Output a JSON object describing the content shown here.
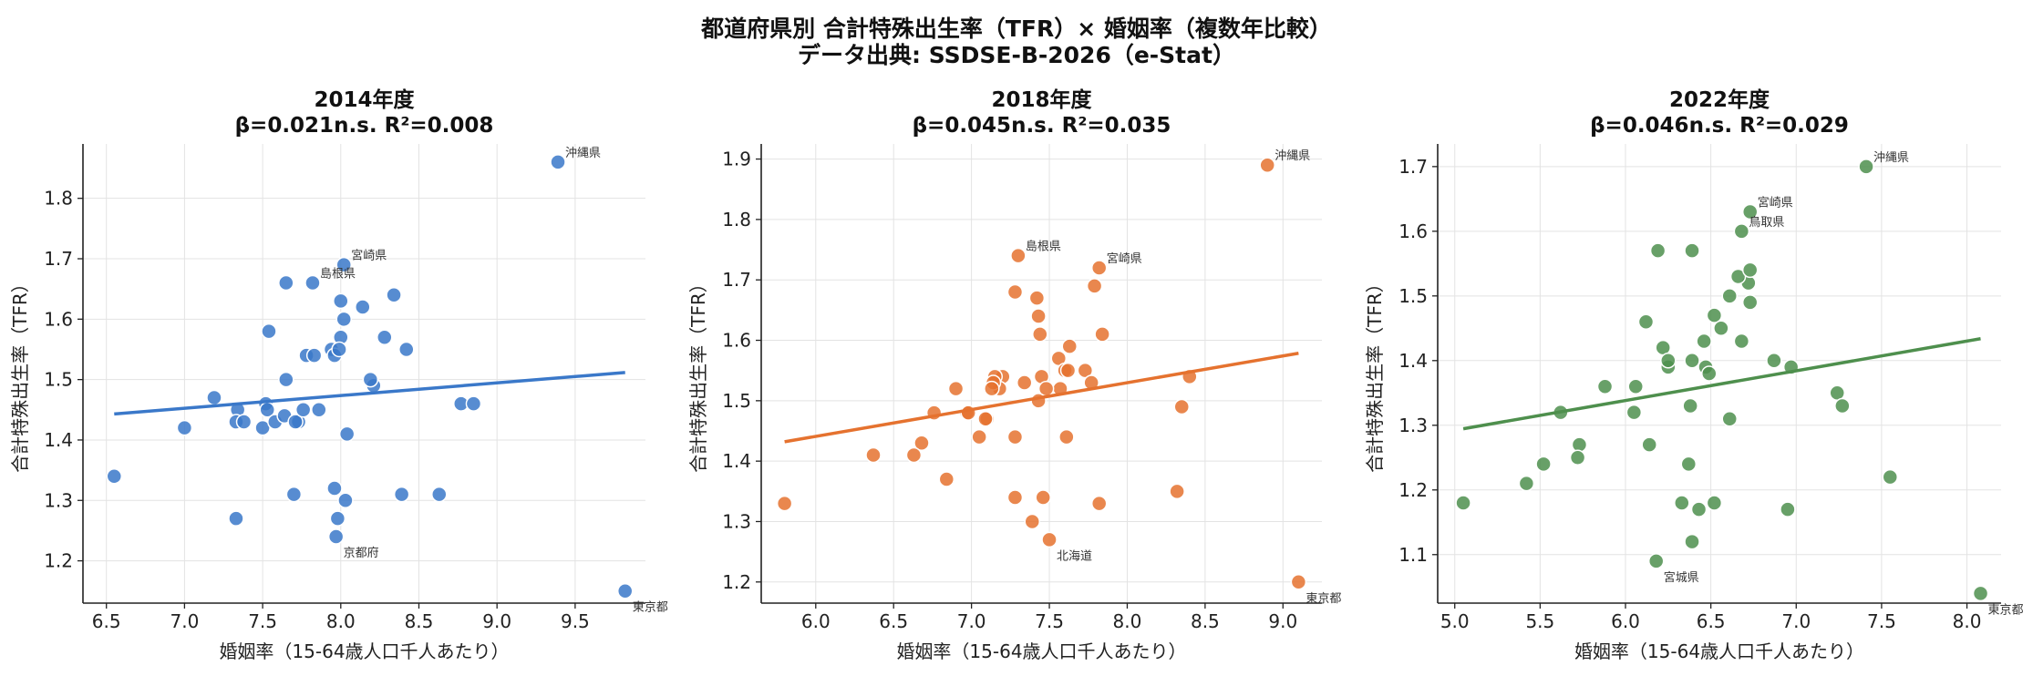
{
  "figure": {
    "title": "都道府県別 合計特殊出生率（TFR）× 婚姻率（複数年比較）",
    "source": "データ出典: SSDSE-B-2026（e-Stat）"
  },
  "chart_data": [
    {
      "type": "scatter",
      "title": "2014年度",
      "subtitle": "β=0.021n.s.  R²=0.008",
      "xlabel": "婚姻率（15-64歳人口千人あたり）",
      "ylabel": "合計特殊出生率（TFR）",
      "xlim": [
        6.35,
        9.95
      ],
      "ylim": [
        1.13,
        1.89
      ],
      "xticks": [
        6.5,
        7.0,
        7.5,
        8.0,
        8.5,
        9.0,
        9.5
      ],
      "xtick_labels": [
        "6.5",
        "7.0",
        "7.5",
        "8.0",
        "8.5",
        "9.0",
        "9.5"
      ],
      "yticks": [
        1.2,
        1.3,
        1.4,
        1.5,
        1.6,
        1.7,
        1.8
      ],
      "ytick_labels": [
        "1.2",
        "1.3",
        "1.4",
        "1.5",
        "1.6",
        "1.7",
        "1.8"
      ],
      "grid": true,
      "color": "#3a78c9",
      "x": [
        9.39,
        9.82,
        8.02,
        7.82,
        7.97,
        8.0,
        8.02,
        7.65,
        8.14,
        8.34,
        8.28,
        8.0,
        7.94,
        7.96,
        7.54,
        7.78,
        7.83,
        7.73,
        8.42,
        8.21,
        8.19,
        7.65,
        7.19,
        7.34,
        7.33,
        7.5,
        7.52,
        7.53,
        7.58,
        7.64,
        7.71,
        7.76,
        7.86,
        7.38,
        7.0,
        6.55,
        7.7,
        7.96,
        8.04,
        8.39,
        8.63,
        8.77,
        8.85,
        7.98,
        7.99,
        8.03,
        7.33
      ],
      "y": [
        1.86,
        1.15,
        1.69,
        1.66,
        1.24,
        1.63,
        1.6,
        1.66,
        1.62,
        1.64,
        1.57,
        1.57,
        1.55,
        1.54,
        1.58,
        1.54,
        1.54,
        1.43,
        1.55,
        1.49,
        1.5,
        1.5,
        1.47,
        1.45,
        1.43,
        1.42,
        1.46,
        1.45,
        1.43,
        1.44,
        1.43,
        1.45,
        1.45,
        1.43,
        1.42,
        1.34,
        1.31,
        1.32,
        1.41,
        1.31,
        1.31,
        1.46,
        1.46,
        1.27,
        1.55,
        1.3,
        1.27
      ],
      "point_labels": [
        {
          "index": 0,
          "text": "沖縄県"
        },
        {
          "index": 1,
          "text": "東京都"
        },
        {
          "index": 2,
          "text": "宮崎県"
        },
        {
          "index": 3,
          "text": "島根県"
        },
        {
          "index": 4,
          "text": "京都府"
        }
      ],
      "regression": {
        "x": [
          6.55,
          9.82
        ],
        "y": [
          1.4431,
          1.5117
        ]
      }
    },
    {
      "type": "scatter",
      "title": "2018年度",
      "subtitle": "β=0.045n.s.  R²=0.035",
      "xlabel": "婚姻率（15-64歳人口千人あたり）",
      "ylabel": "合計特殊出生率（TFR）",
      "xlim": [
        5.65,
        9.25
      ],
      "ylim": [
        1.165,
        1.925
      ],
      "xticks": [
        6.0,
        6.5,
        7.0,
        7.5,
        8.0,
        8.5,
        9.0
      ],
      "xtick_labels": [
        "6.0",
        "6.5",
        "7.0",
        "7.5",
        "8.0",
        "8.5",
        "9.0"
      ],
      "yticks": [
        1.2,
        1.3,
        1.4,
        1.5,
        1.6,
        1.7,
        1.8,
        1.9
      ],
      "ytick_labels": [
        "1.2",
        "1.3",
        "1.4",
        "1.5",
        "1.6",
        "1.7",
        "1.8",
        "1.9"
      ],
      "grid": true,
      "color": "#e5722f",
      "x": [
        8.9,
        9.1,
        7.3,
        7.82,
        7.5,
        7.28,
        7.42,
        7.43,
        7.44,
        7.56,
        7.63,
        7.84,
        7.6,
        7.62,
        7.57,
        7.45,
        7.48,
        7.34,
        7.43,
        7.73,
        7.77,
        7.79,
        8.4,
        8.35,
        7.2,
        7.18,
        7.15,
        7.14,
        7.13,
        7.1,
        6.9,
        6.97,
        6.98,
        7.09,
        7.05,
        7.28,
        6.76,
        6.68,
        6.63,
        6.37,
        6.84,
        5.8,
        7.28,
        7.46,
        7.39,
        7.82,
        8.32,
        7.61
      ],
      "y": [
        1.89,
        1.2,
        1.74,
        1.72,
        1.27,
        1.68,
        1.67,
        1.64,
        1.61,
        1.57,
        1.59,
        1.61,
        1.55,
        1.55,
        1.52,
        1.54,
        1.52,
        1.53,
        1.5,
        1.55,
        1.53,
        1.69,
        1.54,
        1.49,
        1.54,
        1.52,
        1.54,
        1.53,
        1.52,
        1.47,
        1.52,
        1.48,
        1.48,
        1.47,
        1.44,
        1.44,
        1.48,
        1.43,
        1.41,
        1.41,
        1.37,
        1.33,
        1.34,
        1.34,
        1.3,
        1.33,
        1.35,
        1.44
      ],
      "point_labels": [
        {
          "index": 0,
          "text": "沖縄県"
        },
        {
          "index": 1,
          "text": "東京都"
        },
        {
          "index": 2,
          "text": "島根県"
        },
        {
          "index": 3,
          "text": "宮崎県"
        },
        {
          "index": 4,
          "text": "北海道"
        }
      ],
      "regression": {
        "x": [
          5.8,
          9.1
        ],
        "y": [
          1.4321,
          1.5786
        ]
      }
    },
    {
      "type": "scatter",
      "title": "2022年度",
      "subtitle": "β=0.046n.s.  R²=0.029",
      "xlabel": "婚姻率（15-64歳人口千人あたり）",
      "ylabel": "合計特殊出生率（TFR）",
      "xlim": [
        4.9,
        8.2
      ],
      "ylim": [
        1.025,
        1.735
      ],
      "xticks": [
        5.0,
        5.5,
        6.0,
        6.5,
        7.0,
        7.5,
        8.0
      ],
      "xtick_labels": [
        "5.0",
        "5.5",
        "6.0",
        "6.5",
        "7.0",
        "7.5",
        "8.0"
      ],
      "yticks": [
        1.1,
        1.2,
        1.3,
        1.4,
        1.5,
        1.6,
        1.7
      ],
      "ytick_labels": [
        "1.1",
        "1.2",
        "1.3",
        "1.4",
        "1.5",
        "1.6",
        "1.7"
      ],
      "grid": true,
      "color": "#4e8f4d",
      "x": [
        7.41,
        8.08,
        6.73,
        6.68,
        6.18,
        6.19,
        6.39,
        6.72,
        6.66,
        6.73,
        6.61,
        6.52,
        6.73,
        6.68,
        6.56,
        6.46,
        6.12,
        6.22,
        6.47,
        6.49,
        6.39,
        6.25,
        6.25,
        5.88,
        6.06,
        5.62,
        5.73,
        5.72,
        6.05,
        6.14,
        6.38,
        6.61,
        6.87,
        6.97,
        7.24,
        7.27,
        7.55,
        6.33,
        6.43,
        6.52,
        6.39,
        6.37,
        5.52,
        5.42,
        5.05,
        6.95
      ],
      "y": [
        1.7,
        1.04,
        1.63,
        1.6,
        1.09,
        1.57,
        1.57,
        1.52,
        1.53,
        1.49,
        1.5,
        1.47,
        1.54,
        1.43,
        1.45,
        1.43,
        1.46,
        1.42,
        1.39,
        1.38,
        1.4,
        1.39,
        1.4,
        1.36,
        1.36,
        1.32,
        1.27,
        1.25,
        1.32,
        1.27,
        1.33,
        1.31,
        1.4,
        1.39,
        1.35,
        1.33,
        1.22,
        1.18,
        1.17,
        1.18,
        1.12,
        1.24,
        1.24,
        1.21,
        1.18,
        1.17
      ],
      "point_labels": [
        {
          "index": 0,
          "text": "沖縄県"
        },
        {
          "index": 1,
          "text": "東京都"
        },
        {
          "index": 2,
          "text": "宮崎県"
        },
        {
          "index": 3,
          "text": "鳥取県"
        },
        {
          "index": 4,
          "text": "宮城県"
        }
      ],
      "regression": {
        "x": [
          5.05,
          8.08
        ],
        "y": [
          1.2946,
          1.4339
        ]
      }
    }
  ]
}
